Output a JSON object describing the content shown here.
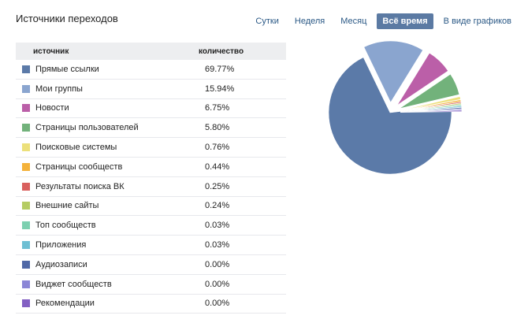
{
  "header": {
    "title": "Источники переходов",
    "tabs": [
      {
        "label": "Сутки",
        "active": false
      },
      {
        "label": "Неделя",
        "active": false
      },
      {
        "label": "Месяц",
        "active": false
      },
      {
        "label": "Всё время",
        "active": true
      },
      {
        "label": "В виде графиков",
        "active": false
      }
    ]
  },
  "table": {
    "col_source": "источник",
    "col_count": "количество",
    "rows": [
      {
        "name": "Прямые ссылки",
        "value": "69.77%",
        "color": "#5b7aa8"
      },
      {
        "name": "Мои группы",
        "value": "15.94%",
        "color": "#8aa5cf"
      },
      {
        "name": "Новости",
        "value": "6.75%",
        "color": "#bb5fa8"
      },
      {
        "name": "Страницы пользователей",
        "value": "5.80%",
        "color": "#72b27b"
      },
      {
        "name": "Поисковые системы",
        "value": "0.76%",
        "color": "#ece07b"
      },
      {
        "name": "Страницы сообществ",
        "value": "0.44%",
        "color": "#f4b23a"
      },
      {
        "name": "Результаты поиска ВК",
        "value": "0.25%",
        "color": "#d9605e"
      },
      {
        "name": "Внешние сайты",
        "value": "0.24%",
        "color": "#b5cc63"
      },
      {
        "name": "Топ сообществ",
        "value": "0.03%",
        "color": "#7dd0b0"
      },
      {
        "name": "Приложения",
        "value": "0.03%",
        "color": "#6ebfd3"
      },
      {
        "name": "Аудиозаписи",
        "value": "0.00%",
        "color": "#4f68a6"
      },
      {
        "name": "Виджет сообществ",
        "value": "0.00%",
        "color": "#8b86d6"
      },
      {
        "name": "Рекомендации",
        "value": "0.00%",
        "color": "#8360c3"
      }
    ]
  },
  "chart_data": {
    "type": "pie",
    "categories": [
      "Прямые ссылки",
      "Мои группы",
      "Новости",
      "Страницы пользователей",
      "Поисковые системы",
      "Страницы сообществ",
      "Результаты поиска ВК",
      "Внешние сайты",
      "Топ сообществ",
      "Приложения",
      "Аудиозаписи",
      "Виджет сообществ",
      "Рекомендации"
    ],
    "values": [
      69.77,
      15.94,
      6.75,
      5.8,
      0.76,
      0.44,
      0.25,
      0.24,
      0.03,
      0.03,
      0.0,
      0.0,
      0.0
    ],
    "colors": [
      "#5b7aa8",
      "#8aa5cf",
      "#bb5fa8",
      "#72b27b",
      "#ece07b",
      "#f4b23a",
      "#d9605e",
      "#b5cc63",
      "#7dd0b0",
      "#6ebfd3",
      "#4f68a6",
      "#8b86d6",
      "#8360c3"
    ]
  }
}
